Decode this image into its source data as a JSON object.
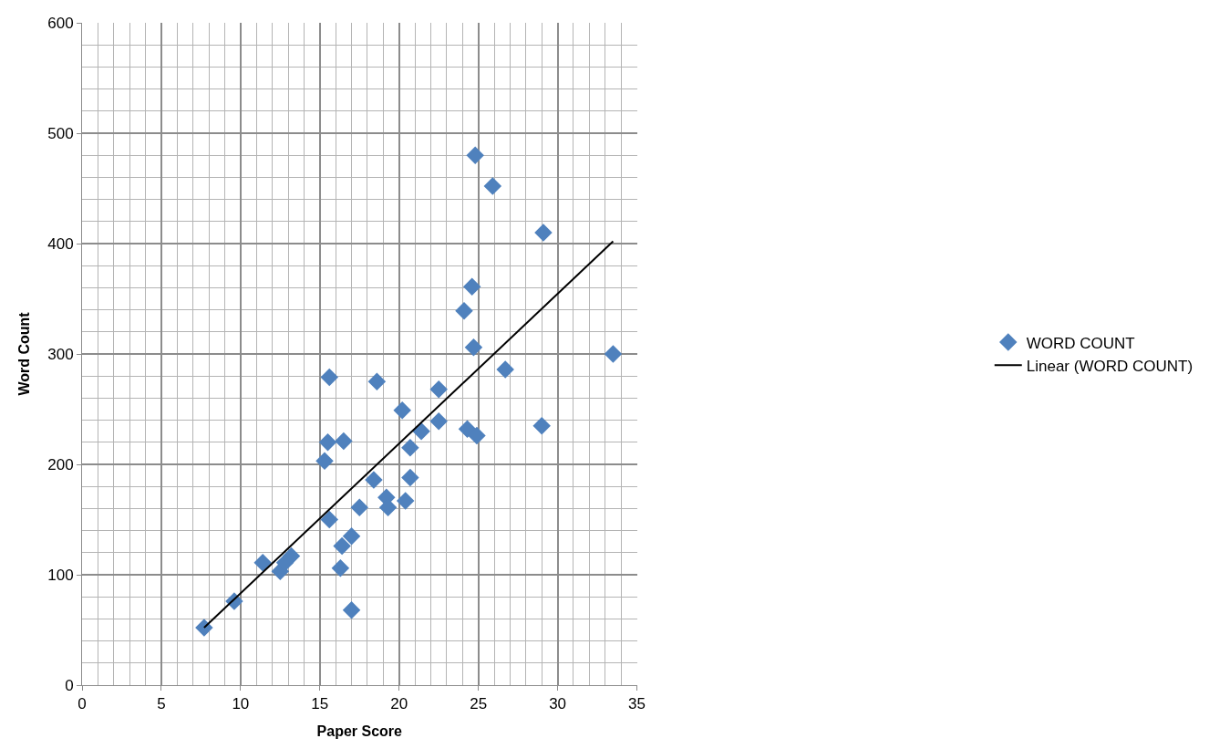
{
  "chart_data": {
    "type": "scatter",
    "xlabel": "Paper Score",
    "ylabel": "Word Count",
    "xlim": [
      0,
      35
    ],
    "xticks": [
      0,
      5,
      10,
      15,
      20,
      25,
      30,
      35
    ],
    "ylim": [
      0,
      600
    ],
    "yticks": [
      0,
      100,
      200,
      300,
      400,
      500,
      600
    ],
    "grid": true,
    "legend": "right",
    "series": [
      {
        "name": "WORD COUNT",
        "marker": "diamond",
        "color": "#4f81bd",
        "x": [
          7.7,
          9.6,
          11.4,
          12.5,
          13.2,
          12.8,
          15.6,
          15.3,
          15.5,
          16.5,
          18.6,
          20.2,
          20.7,
          20.7,
          18.4,
          19.2,
          19.3,
          20.4,
          17.5,
          15.6,
          17.0,
          16.4,
          16.3,
          17.0,
          21.4,
          24.8,
          25.9,
          29.1,
          24.6,
          24.1,
          24.7,
          33.5,
          26.7,
          22.5,
          22.5,
          24.3,
          24.9,
          29.0
        ],
        "values": [
          52,
          76,
          111,
          103,
          117,
          111,
          279,
          203,
          220,
          221,
          275,
          249,
          215,
          188,
          186,
          170,
          161,
          167,
          161,
          150,
          135,
          126,
          106,
          68,
          230,
          480,
          452,
          410,
          361,
          339,
          306,
          300,
          286,
          268,
          239,
          232,
          226,
          235
        ]
      },
      {
        "name": "Linear (WORD COUNT)",
        "type": "line",
        "marker": "none",
        "color": "#000000",
        "x": [
          7.7,
          33.5
        ],
        "values": [
          52,
          402
        ]
      }
    ]
  }
}
